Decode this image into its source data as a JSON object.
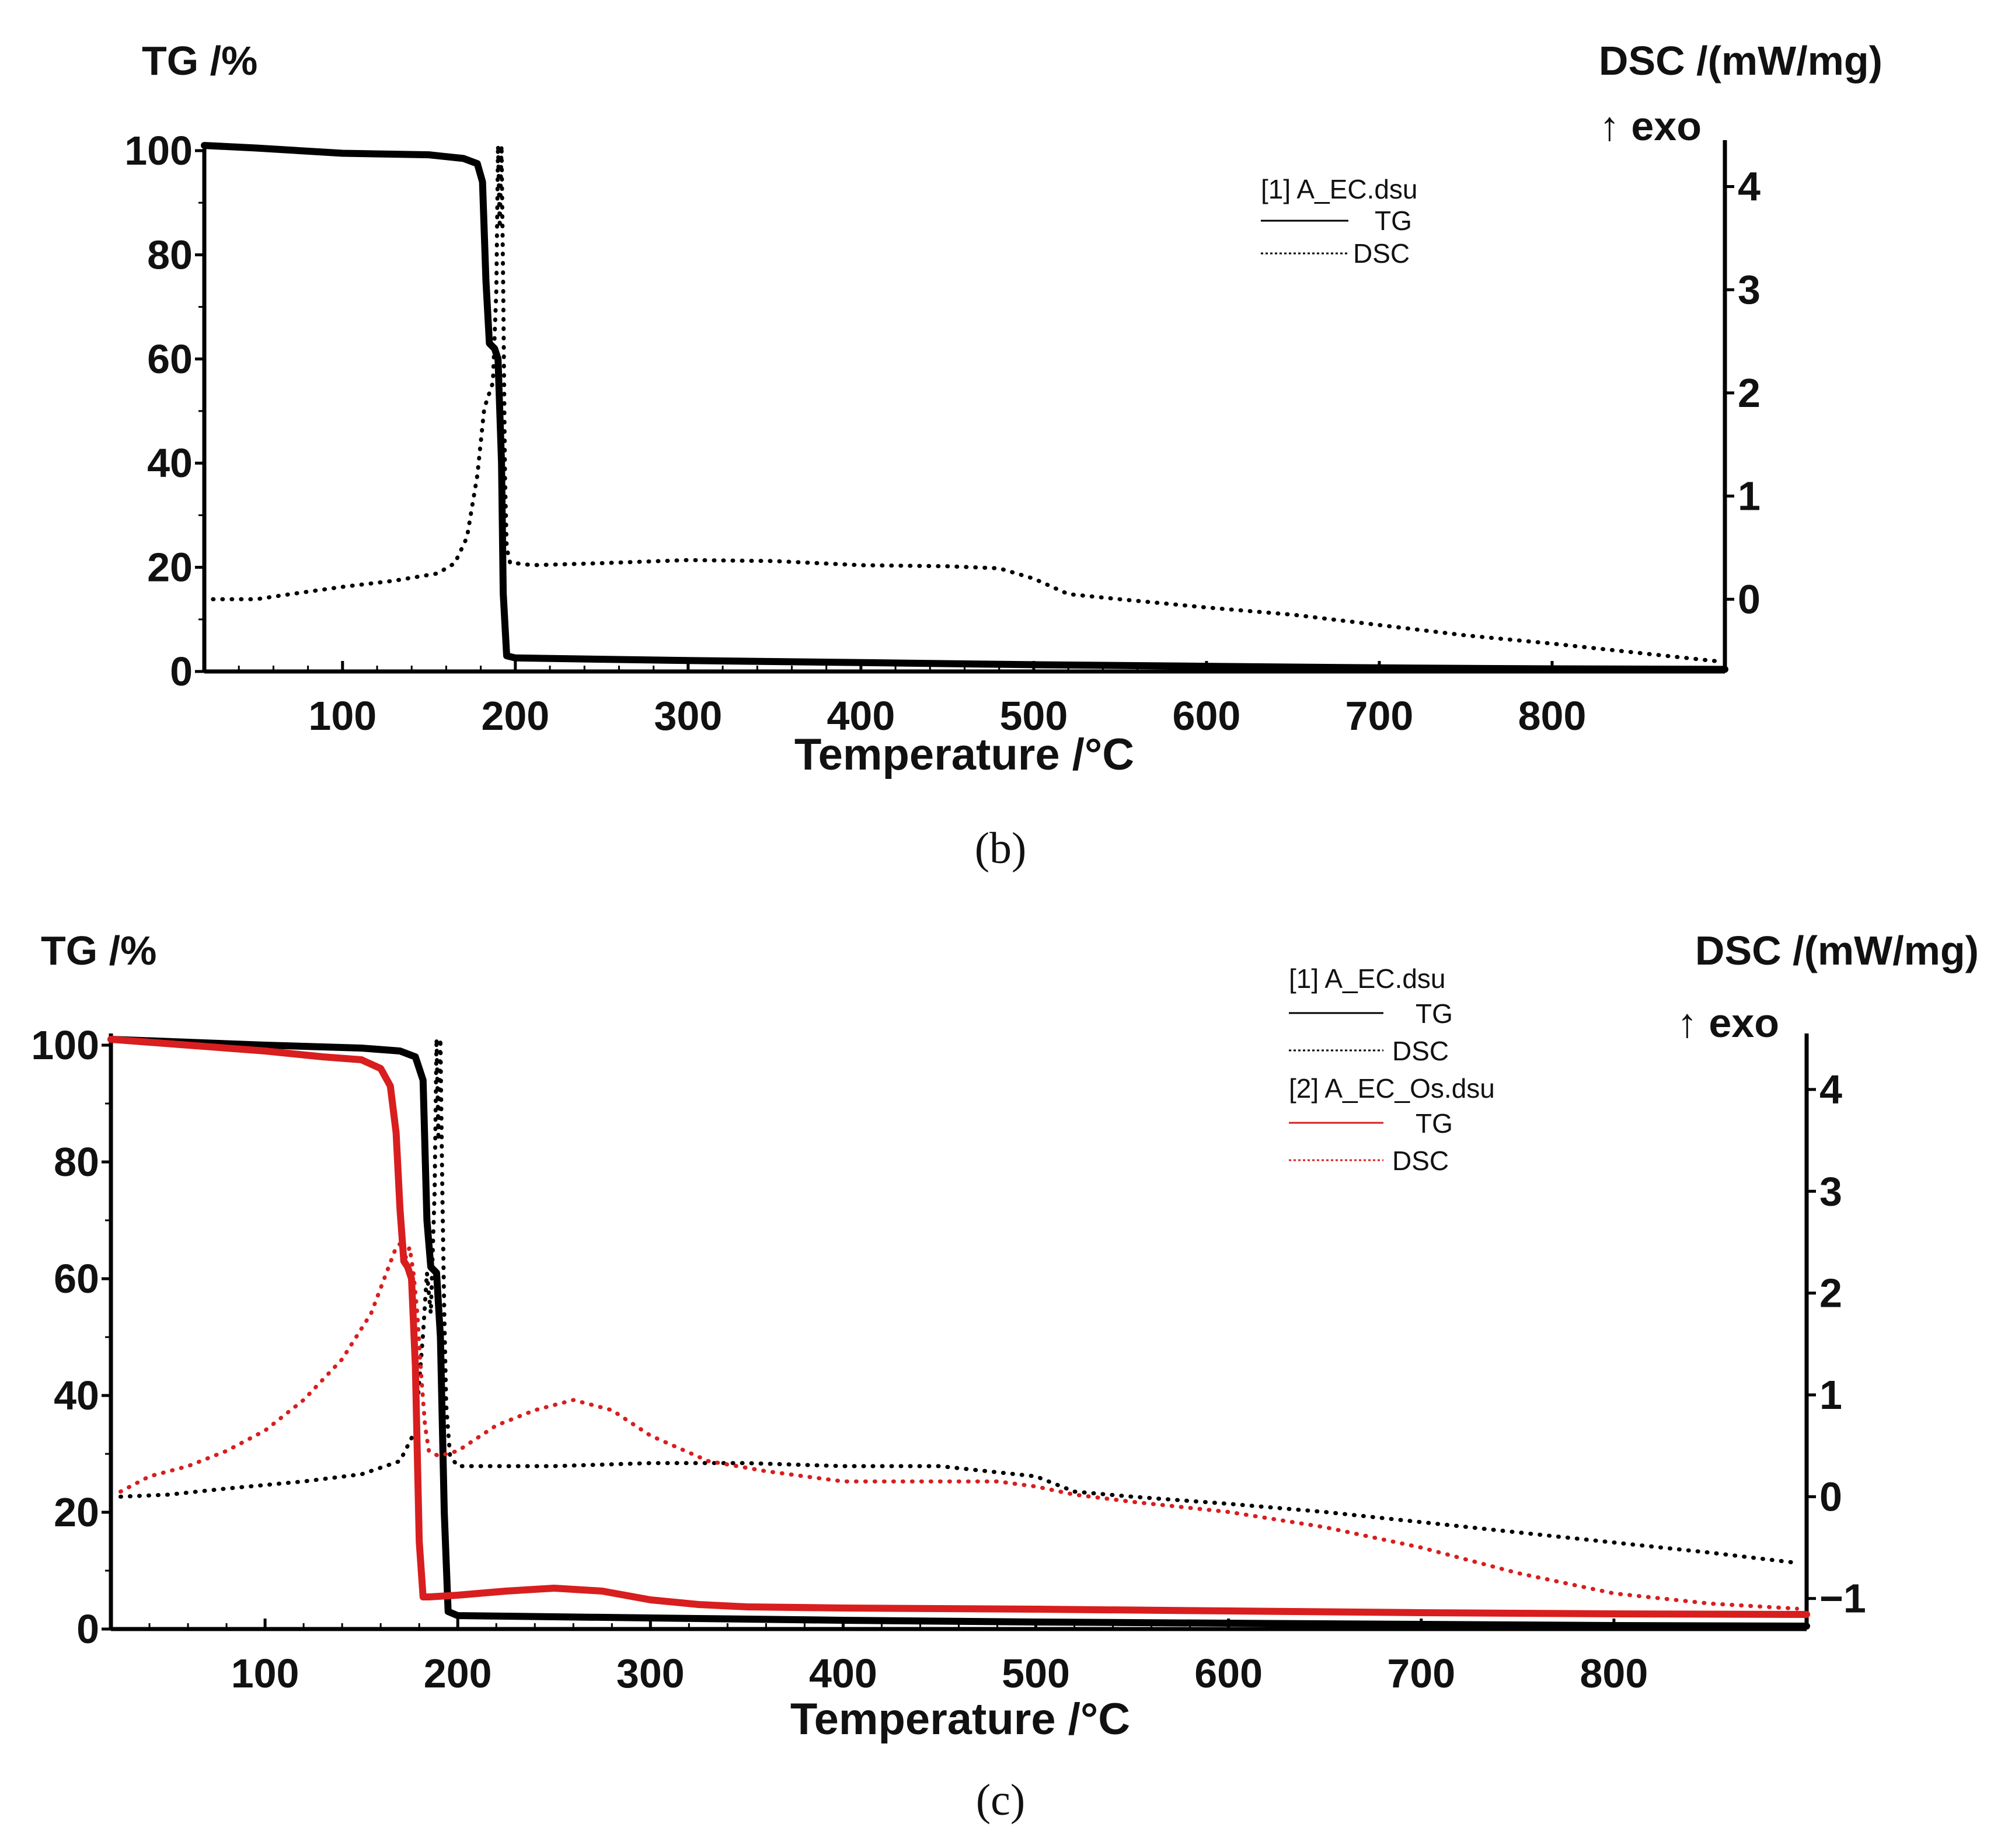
{
  "figure": {
    "panel_labels": [
      "(b)",
      "(c)"
    ]
  },
  "colors": {
    "black": "#000000",
    "red": "#d81e1e"
  },
  "chart_data": [
    {
      "type": "line",
      "panel": "b",
      "panel_label": "(b)",
      "ylabel_left": "TG /%",
      "ylabel_right": "DSC /(mW/mg)",
      "ylabel_right_sub": "↑ exo",
      "xlabel": "Temperature /°C",
      "xlim": [
        20,
        900
      ],
      "xticks": [
        100,
        200,
        300,
        400,
        500,
        600,
        700,
        800
      ],
      "ylim_left": [
        0,
        100
      ],
      "yticks_left": [
        0,
        20,
        40,
        60,
        80,
        100
      ],
      "ylim_right": [
        -0.7,
        4.45
      ],
      "yticks_right": [
        0,
        1,
        2,
        3,
        4
      ],
      "legend": {
        "file": "[1] A_EC.dsu",
        "entries": [
          "TG",
          "DSC"
        ]
      },
      "series": [
        {
          "name": "TG",
          "file": "[1] A_EC.dsu",
          "axis": "left",
          "style": "solid",
          "color": "#000000",
          "x": [
            20,
            50,
            100,
            150,
            170,
            178,
            181,
            183,
            185,
            188,
            190,
            192,
            193,
            195,
            200,
            300,
            400,
            500,
            600,
            700,
            800,
            900
          ],
          "y": [
            101,
            100.5,
            99.5,
            99.2,
            98.5,
            97.5,
            94,
            75,
            63,
            62,
            60,
            40,
            15,
            3,
            2.6,
            2.1,
            1.7,
            1.3,
            1.0,
            0.7,
            0.5,
            0.4
          ]
        },
        {
          "name": "DSC",
          "file": "[1] A_EC.dsu",
          "axis": "right",
          "style": "dotted",
          "color": "#000000",
          "x": [
            25,
            50,
            70,
            100,
            130,
            155,
            165,
            172,
            178,
            182,
            185,
            187,
            189,
            190,
            191,
            192,
            193,
            194,
            195,
            197,
            200,
            210,
            250,
            300,
            350,
            400,
            450,
            480,
            500,
            520,
            550,
            600,
            650,
            700,
            750,
            800,
            850,
            895
          ],
          "y": [
            0,
            0,
            0.05,
            0.12,
            0.18,
            0.25,
            0.35,
            0.6,
            1.2,
            1.85,
            2.0,
            2.1,
            3.0,
            4.4,
            3.6,
            4.4,
            3.0,
            1.2,
            0.5,
            0.35,
            0.35,
            0.33,
            0.35,
            0.38,
            0.37,
            0.33,
            0.32,
            0.3,
            0.2,
            0.05,
            0.0,
            -0.08,
            -0.15,
            -0.25,
            -0.35,
            -0.43,
            -0.52,
            -0.6
          ]
        }
      ]
    },
    {
      "type": "line",
      "panel": "c",
      "panel_label": "(c)",
      "ylabel_left": "TG /%",
      "ylabel_right": "DSC /(mW/mg)",
      "ylabel_right_sub": "↑ exo",
      "xlabel": "Temperature /°C",
      "xlim": [
        20,
        900
      ],
      "xticks": [
        100,
        200,
        300,
        400,
        500,
        600,
        700,
        800
      ],
      "ylim_left": [
        0,
        100
      ],
      "yticks_left": [
        0,
        20,
        40,
        60,
        80,
        100
      ],
      "ylim_right": [
        -1.3,
        4.55
      ],
      "yticks_right": [
        -1,
        0,
        1,
        2,
        3,
        4
      ],
      "legend": {
        "groups": [
          {
            "file": "[1] A_EC.dsu",
            "entries": [
              "TG",
              "DSC"
            ],
            "color": "#000000"
          },
          {
            "file": "[2] A_EC_Os.dsu",
            "entries": [
              "TG",
              "DSC"
            ],
            "color": "#d81e1e"
          }
        ]
      },
      "series": [
        {
          "name": "TG",
          "file": "[1] A_EC.dsu",
          "axis": "left",
          "style": "solid",
          "color": "#000000",
          "x": [
            20,
            100,
            150,
            170,
            178,
            182,
            184,
            186,
            189,
            191,
            193,
            195,
            200,
            300,
            400,
            500,
            600,
            700,
            800,
            900
          ],
          "y": [
            101,
            100,
            99.5,
            99,
            98,
            94,
            70,
            62,
            61,
            50,
            20,
            3,
            2.3,
            1.9,
            1.5,
            1.2,
            1.0,
            0.8,
            0.6,
            0.5
          ]
        },
        {
          "name": "DSC",
          "file": "[1] A_EC.dsu",
          "axis": "right",
          "style": "dotted",
          "color": "#000000",
          "x": [
            25,
            50,
            80,
            120,
            150,
            170,
            178,
            182,
            184,
            186,
            188,
            189,
            190,
            191,
            192,
            193,
            194,
            196,
            200,
            250,
            300,
            350,
            400,
            450,
            500,
            520,
            550,
            600,
            650,
            700,
            750,
            800,
            850,
            895
          ],
          "y": [
            0,
            0.02,
            0.08,
            0.15,
            0.22,
            0.35,
            0.65,
            1.6,
            2.2,
            1.8,
            3.0,
            4.5,
            3.5,
            4.5,
            3.0,
            1.8,
            0.9,
            0.4,
            0.3,
            0.3,
            0.33,
            0.33,
            0.3,
            0.3,
            0.2,
            0.05,
            0.0,
            -0.07,
            -0.15,
            -0.25,
            -0.35,
            -0.45,
            -0.55,
            -0.65
          ]
        },
        {
          "name": "TG",
          "file": "[2] A_EC_Os.dsu",
          "axis": "left",
          "style": "solid",
          "color": "#d81e1e",
          "x": [
            20,
            60,
            100,
            130,
            150,
            160,
            165,
            168,
            170,
            172,
            174,
            176,
            178,
            180,
            182,
            185,
            200,
            225,
            250,
            275,
            300,
            325,
            350,
            400,
            500,
            600,
            700,
            800,
            900
          ],
          "y": [
            101,
            100,
            99,
            98,
            97.5,
            96,
            93,
            85,
            72,
            63,
            62,
            60,
            45,
            15,
            5.5,
            5.5,
            5.8,
            6.5,
            7.0,
            6.5,
            5.0,
            4.2,
            3.8,
            3.6,
            3.4,
            3.1,
            2.8,
            2.6,
            2.5
          ]
        },
        {
          "name": "DSC",
          "file": "[2] A_EC_Os.dsu",
          "axis": "right",
          "style": "dotted",
          "color": "#d81e1e",
          "x": [
            25,
            40,
            60,
            80,
            100,
            120,
            140,
            155,
            163,
            168,
            171,
            173,
            175,
            177,
            179,
            181,
            183,
            185,
            190,
            200,
            220,
            240,
            260,
            280,
            300,
            330,
            360,
            400,
            450,
            480,
            500,
            520,
            550,
            600,
            650,
            700,
            750,
            800,
            850,
            895
          ],
          "y": [
            0.05,
            0.2,
            0.3,
            0.45,
            0.65,
            0.95,
            1.35,
            1.8,
            2.2,
            2.45,
            2.5,
            2.35,
            2.45,
            2.2,
            1.8,
            1.2,
            0.7,
            0.45,
            0.4,
            0.45,
            0.7,
            0.85,
            0.95,
            0.85,
            0.6,
            0.35,
            0.25,
            0.15,
            0.15,
            0.15,
            0.1,
            0.02,
            -0.05,
            -0.15,
            -0.3,
            -0.5,
            -0.75,
            -0.95,
            -1.05,
            -1.1
          ]
        }
      ]
    }
  ]
}
